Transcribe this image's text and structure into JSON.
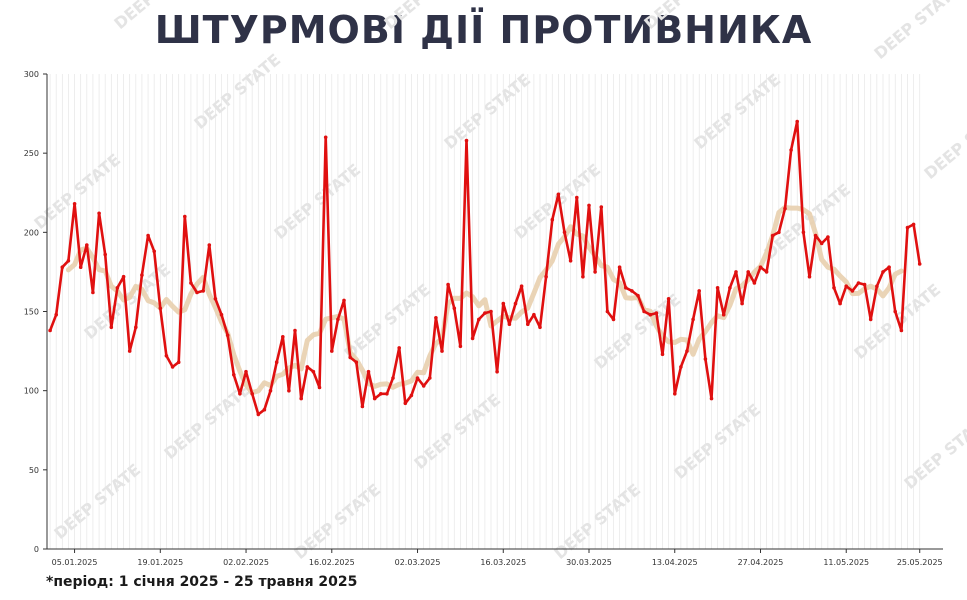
{
  "title": "ШТУРМОВІ ДІЇ ПРОТИВНИКА",
  "footnote": "*період: 1 січня 2025 - 25 травня 2025",
  "watermark": "DEEP STATE",
  "colors": {
    "primary": "#e01010",
    "trend": "#e8cfae",
    "grid": "#e6e6e6",
    "axis": "#333333",
    "title": "#2f3247"
  },
  "chart_data": {
    "type": "line",
    "title": "ШТУРМОВІ ДІЇ ПРОТИВНИКА",
    "xlabel": "",
    "ylabel": "",
    "ylim": [
      0,
      300
    ],
    "yticks": [
      0,
      50,
      100,
      150,
      200,
      250,
      300
    ],
    "xtick_labels": [
      "05.01.2025",
      "19.01.2025",
      "02.02.2025",
      "16.02.2025",
      "02.03.2025",
      "16.03.2025",
      "30.03.2025",
      "13.04.2025",
      "27.04.2025",
      "11.05.2025",
      "25.05.2025"
    ],
    "grid": "vertical daily lines",
    "series": [
      {
        "values": [
          138,
          148,
          178,
          182,
          218,
          178,
          192,
          162,
          212,
          186,
          140,
          165,
          172,
          125,
          140,
          173,
          198,
          188,
          152,
          122,
          115,
          118,
          210,
          168,
          162,
          163,
          192,
          158,
          148,
          135,
          110,
          98,
          112,
          98,
          85,
          88,
          100,
          118,
          134,
          100,
          138,
          95,
          115,
          112,
          102,
          260,
          125,
          145,
          157,
          121,
          118,
          90,
          112,
          95,
          98,
          98,
          108,
          127,
          92,
          97,
          108,
          103,
          108,
          146,
          125,
          167,
          152,
          128,
          258,
          133,
          145,
          149,
          150,
          112,
          155,
          142,
          155,
          166,
          142,
          148,
          140,
          172,
          208,
          224,
          200,
          182,
          222,
          172,
          217,
          175,
          216,
          150,
          145,
          178,
          165,
          163,
          160,
          150,
          148,
          149,
          123,
          158,
          98,
          115,
          125,
          145,
          163,
          120,
          95,
          165,
          148,
          165,
          175,
          155,
          175,
          168,
          178,
          175,
          198,
          200,
          215,
          252,
          270,
          200,
          172,
          198,
          193,
          197,
          165,
          155,
          166,
          163,
          168,
          167,
          145,
          166,
          175,
          178,
          150,
          138,
          203,
          205,
          180
        ]
      }
    ]
  }
}
